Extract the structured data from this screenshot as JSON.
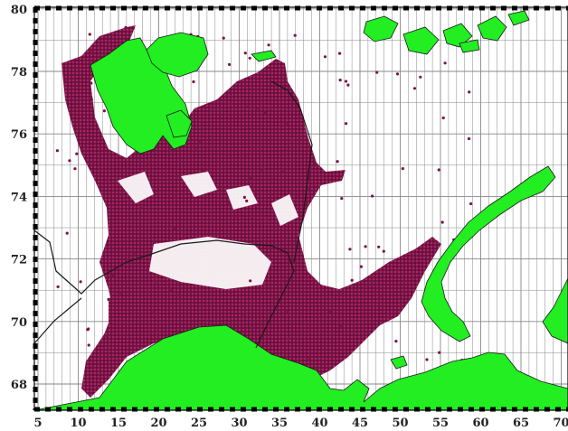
{
  "map": {
    "lat_labels": [
      "80",
      "78",
      "76",
      "74",
      "72",
      "70",
      "68"
    ],
    "lat_values": [
      80,
      78,
      76,
      74,
      72,
      70,
      68
    ],
    "lon_labels": [
      "5",
      "10",
      "15",
      "20",
      "25",
      "30",
      "35",
      "40",
      "45",
      "50",
      "55",
      "60",
      "65",
      "70"
    ],
    "lon_values": [
      5,
      10,
      15,
      20,
      25,
      30,
      35,
      40,
      45,
      50,
      55,
      60,
      65,
      70
    ],
    "land_color": "#22ee22",
    "point_color": "#7a1248",
    "grid_color": "#888888"
  }
}
